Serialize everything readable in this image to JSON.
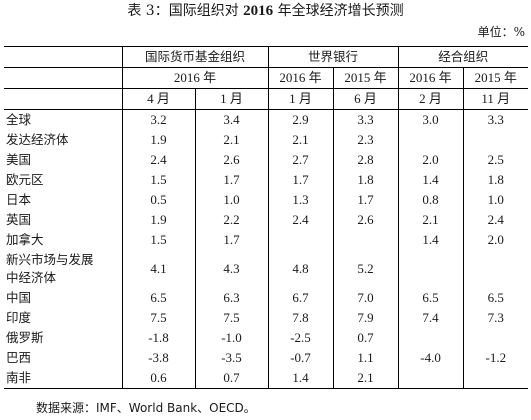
{
  "title": {
    "prefix": "表 3：国际组织对 ",
    "year": "2016",
    "suffix": " 年全球经济增长预测"
  },
  "unit": "单位：%",
  "headers": {
    "orgs": [
      "国际货币基金组织",
      "世界银行",
      "经合组织"
    ],
    "imf_year": "2016 年",
    "wb_years": [
      "2016 年",
      "2015 年"
    ],
    "oecd_years": [
      "2016 年",
      "2015 年"
    ],
    "months": [
      "4 月",
      "1 月",
      "1 月",
      "6 月",
      "2 月",
      "11 月"
    ]
  },
  "rows": [
    {
      "country": "全球",
      "values": [
        "3.2",
        "3.4",
        "2.9",
        "3.3",
        "3.0",
        "3.3"
      ]
    },
    {
      "country": "发达经济体",
      "values": [
        "1.9",
        "2.1",
        "2.1",
        "2.3",
        "",
        ""
      ]
    },
    {
      "country": "美国",
      "values": [
        "2.4",
        "2.6",
        "2.7",
        "2.8",
        "2.0",
        "2.5"
      ]
    },
    {
      "country": "欧元区",
      "values": [
        "1.5",
        "1.7",
        "1.7",
        "1.8",
        "1.4",
        "1.8"
      ]
    },
    {
      "country": "日本",
      "values": [
        "0.5",
        "1.0",
        "1.3",
        "1.7",
        "0.8",
        "1.0"
      ]
    },
    {
      "country": "英国",
      "values": [
        "1.9",
        "2.2",
        "2.4",
        "2.6",
        "2.1",
        "2.4"
      ]
    },
    {
      "country": "加拿大",
      "values": [
        "1.5",
        "1.7",
        "",
        "",
        "1.4",
        "2.0"
      ]
    },
    {
      "country": "新兴市场与发展中经济体",
      "country_lines": [
        "新兴市场与发展",
        "中经济体"
      ],
      "values": [
        "4.1",
        "4.3",
        "4.8",
        "5.2",
        "",
        ""
      ]
    },
    {
      "country": "中国",
      "values": [
        "6.5",
        "6.3",
        "6.7",
        "7.0",
        "6.5",
        "6.5"
      ]
    },
    {
      "country": "印度",
      "values": [
        "7.5",
        "7.5",
        "7.8",
        "7.9",
        "7.4",
        "7.3"
      ]
    },
    {
      "country": "俄罗斯",
      "values": [
        "-1.8",
        "-1.0",
        "-2.5",
        "0.7",
        "",
        ""
      ]
    },
    {
      "country": "巴西",
      "values": [
        "-3.8",
        "-3.5",
        "-0.7",
        "1.1",
        "-4.0",
        "-1.2"
      ]
    },
    {
      "country": "南非",
      "values": [
        "0.6",
        "0.7",
        "1.4",
        "2.1",
        "",
        ""
      ]
    }
  ],
  "source": "数据来源：IMF、World Bank、OECD。"
}
